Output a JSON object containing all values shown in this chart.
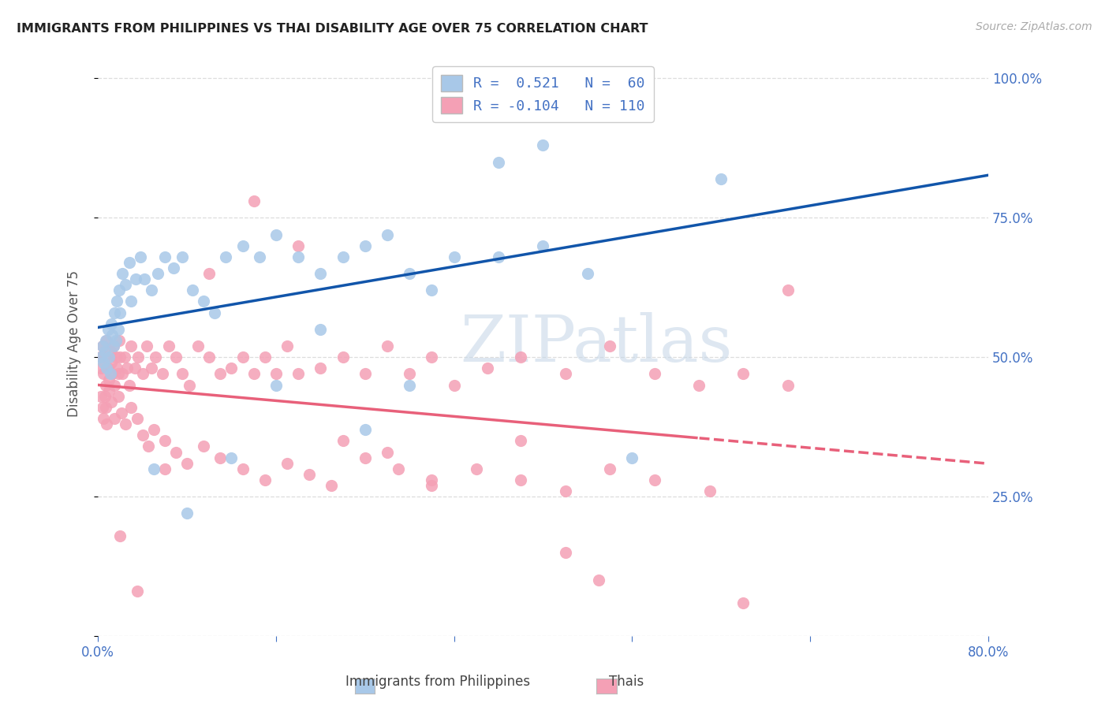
{
  "title": "IMMIGRANTS FROM PHILIPPINES VS THAI DISABILITY AGE OVER 75 CORRELATION CHART",
  "source": "Source: ZipAtlas.com",
  "ylabel": "Disability Age Over 75",
  "xlim": [
    0.0,
    0.8
  ],
  "ylim": [
    0.0,
    1.05
  ],
  "legend_blue_r": "R =  0.521",
  "legend_blue_n": "N =  60",
  "legend_pink_r": "R = -0.104",
  "legend_pink_n": "N = 110",
  "blue_color": "#A8C8E8",
  "pink_color": "#F4A0B5",
  "blue_line_color": "#1155AA",
  "pink_line_color": "#E8607A",
  "watermark": "ZIPatlas",
  "background_color": "#FFFFFF",
  "grid_color": "#DDDDDD",
  "axis_color": "#4472C4",
  "blue_scatter_x": [
    0.003,
    0.004,
    0.005,
    0.006,
    0.007,
    0.008,
    0.009,
    0.01,
    0.011,
    0.012,
    0.013,
    0.014,
    0.015,
    0.016,
    0.017,
    0.018,
    0.019,
    0.02,
    0.022,
    0.025,
    0.028,
    0.03,
    0.034,
    0.038,
    0.042,
    0.048,
    0.054,
    0.06,
    0.068,
    0.076,
    0.085,
    0.095,
    0.105,
    0.115,
    0.13,
    0.145,
    0.16,
    0.18,
    0.2,
    0.22,
    0.24,
    0.26,
    0.28,
    0.3,
    0.32,
    0.36,
    0.4,
    0.44,
    0.48,
    0.56,
    0.32,
    0.36,
    0.4,
    0.28,
    0.24,
    0.2,
    0.16,
    0.12,
    0.08,
    0.05
  ],
  "blue_scatter_y": [
    0.5,
    0.52,
    0.49,
    0.51,
    0.53,
    0.48,
    0.55,
    0.5,
    0.47,
    0.56,
    0.54,
    0.52,
    0.58,
    0.53,
    0.6,
    0.55,
    0.62,
    0.58,
    0.65,
    0.63,
    0.67,
    0.6,
    0.64,
    0.68,
    0.64,
    0.62,
    0.65,
    0.68,
    0.66,
    0.68,
    0.62,
    0.6,
    0.58,
    0.68,
    0.7,
    0.68,
    0.72,
    0.68,
    0.65,
    0.68,
    0.7,
    0.72,
    0.65,
    0.62,
    0.68,
    0.68,
    0.88,
    0.65,
    0.32,
    0.82,
    0.99,
    0.85,
    0.7,
    0.45,
    0.37,
    0.55,
    0.45,
    0.32,
    0.22,
    0.3
  ],
  "pink_scatter_x": [
    0.002,
    0.003,
    0.004,
    0.005,
    0.006,
    0.007,
    0.008,
    0.009,
    0.01,
    0.011,
    0.012,
    0.013,
    0.014,
    0.015,
    0.016,
    0.017,
    0.018,
    0.019,
    0.02,
    0.022,
    0.024,
    0.026,
    0.028,
    0.03,
    0.033,
    0.036,
    0.04,
    0.044,
    0.048,
    0.052,
    0.058,
    0.064,
    0.07,
    0.076,
    0.082,
    0.09,
    0.1,
    0.11,
    0.12,
    0.13,
    0.14,
    0.15,
    0.16,
    0.17,
    0.18,
    0.2,
    0.22,
    0.24,
    0.26,
    0.28,
    0.3,
    0.32,
    0.35,
    0.38,
    0.42,
    0.46,
    0.5,
    0.54,
    0.58,
    0.62,
    0.003,
    0.004,
    0.005,
    0.006,
    0.007,
    0.008,
    0.01,
    0.012,
    0.015,
    0.018,
    0.021,
    0.025,
    0.03,
    0.035,
    0.04,
    0.045,
    0.05,
    0.06,
    0.07,
    0.08,
    0.095,
    0.11,
    0.13,
    0.15,
    0.17,
    0.19,
    0.21,
    0.24,
    0.27,
    0.3,
    0.34,
    0.38,
    0.42,
    0.46,
    0.5,
    0.55,
    0.42,
    0.38,
    0.3,
    0.26,
    0.22,
    0.18,
    0.14,
    0.1,
    0.06,
    0.035,
    0.02,
    0.45,
    0.58,
    0.62
  ],
  "pink_scatter_y": [
    0.5,
    0.48,
    0.52,
    0.47,
    0.5,
    0.45,
    0.53,
    0.48,
    0.46,
    0.51,
    0.49,
    0.47,
    0.52,
    0.45,
    0.5,
    0.48,
    0.47,
    0.53,
    0.5,
    0.47,
    0.5,
    0.48,
    0.45,
    0.52,
    0.48,
    0.5,
    0.47,
    0.52,
    0.48,
    0.5,
    0.47,
    0.52,
    0.5,
    0.47,
    0.45,
    0.52,
    0.5,
    0.47,
    0.48,
    0.5,
    0.47,
    0.5,
    0.47,
    0.52,
    0.47,
    0.48,
    0.5,
    0.47,
    0.52,
    0.47,
    0.5,
    0.45,
    0.48,
    0.5,
    0.47,
    0.52,
    0.47,
    0.45,
    0.47,
    0.45,
    0.43,
    0.41,
    0.39,
    0.43,
    0.41,
    0.38,
    0.44,
    0.42,
    0.39,
    0.43,
    0.4,
    0.38,
    0.41,
    0.39,
    0.36,
    0.34,
    0.37,
    0.35,
    0.33,
    0.31,
    0.34,
    0.32,
    0.3,
    0.28,
    0.31,
    0.29,
    0.27,
    0.32,
    0.3,
    0.28,
    0.3,
    0.28,
    0.26,
    0.3,
    0.28,
    0.26,
    0.15,
    0.35,
    0.27,
    0.33,
    0.35,
    0.7,
    0.78,
    0.65,
    0.3,
    0.08,
    0.18,
    0.1,
    0.06,
    0.62
  ]
}
